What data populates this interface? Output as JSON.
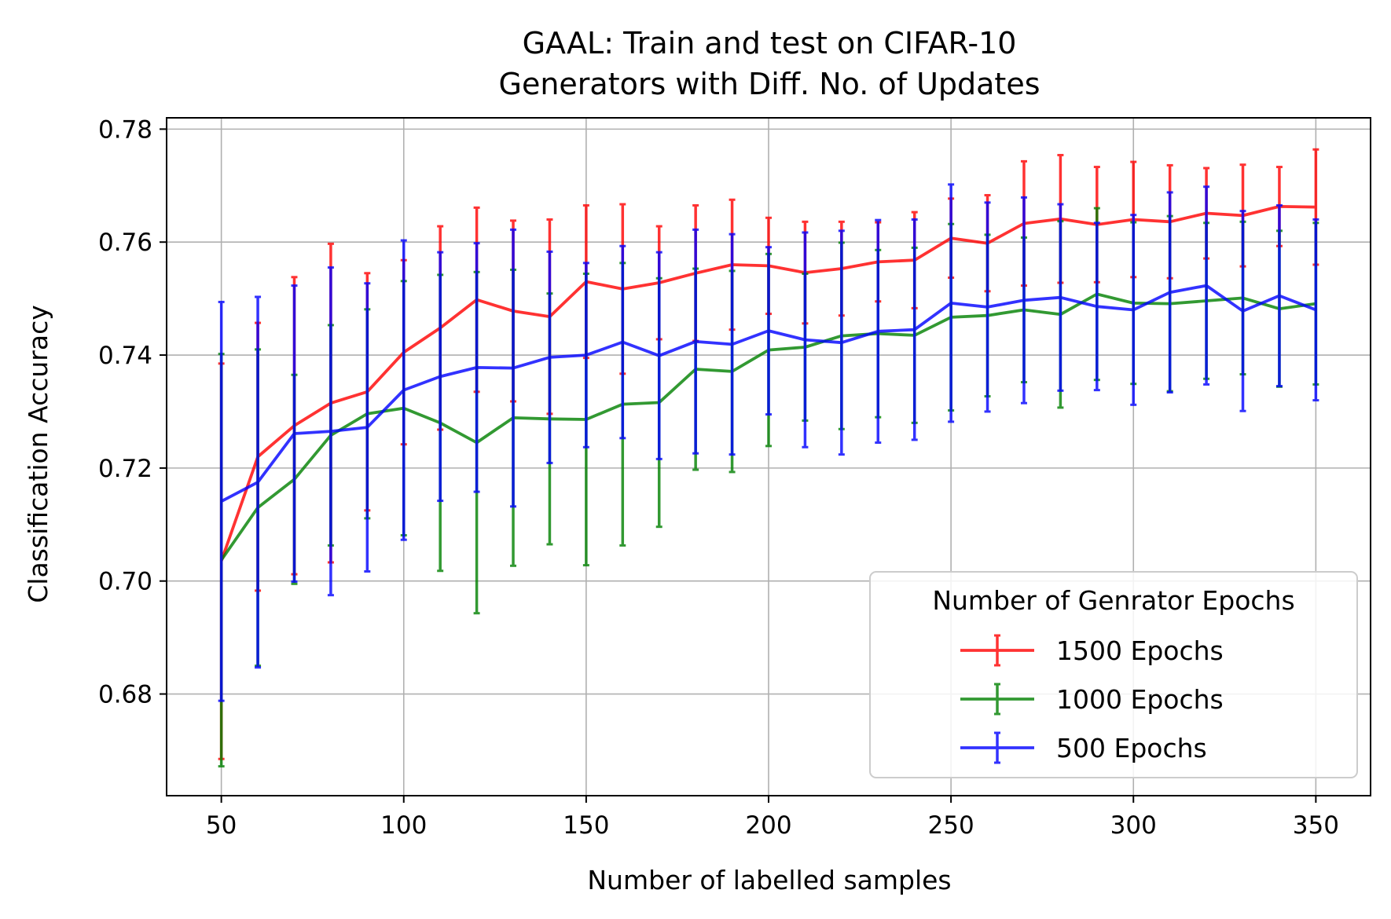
{
  "chart_data": {
    "type": "line",
    "title": "GAAL: Train and test on CIFAR-10",
    "subtitle": "Generators with Diff. No. of Updates",
    "xlabel": "Number of labelled samples",
    "ylabel": "Classification Accuracy",
    "xlim": [
      35,
      365
    ],
    "ylim": [
      0.662,
      0.782
    ],
    "xticks": [
      50,
      100,
      150,
      200,
      250,
      300,
      350
    ],
    "yticks": [
      0.68,
      0.7,
      0.72,
      0.74,
      0.76,
      0.78
    ],
    "yticks_labels": [
      "0.68",
      "0.70",
      "0.72",
      "0.74",
      "0.76",
      "0.78"
    ],
    "grid": true,
    "legend": {
      "title": "Number of Genrator Epochs",
      "placement": "bottom-right"
    },
    "x": [
      50,
      60,
      70,
      80,
      90,
      100,
      110,
      120,
      130,
      140,
      150,
      160,
      170,
      180,
      190,
      200,
      210,
      220,
      230,
      240,
      250,
      260,
      270,
      280,
      290,
      300,
      310,
      320,
      330,
      340,
      350
    ],
    "series": [
      {
        "name": "1500 Epochs",
        "color": "#ff0000",
        "values": [
          0.7035,
          0.722,
          0.7275,
          0.7315,
          0.7335,
          0.7405,
          0.7448,
          0.7498,
          0.7478,
          0.7468,
          0.753,
          0.7517,
          0.7528,
          0.7545,
          0.756,
          0.7558,
          0.7546,
          0.7553,
          0.7565,
          0.7568,
          0.7607,
          0.7598,
          0.7633,
          0.7641,
          0.7631,
          0.764,
          0.7636,
          0.7651,
          0.7647,
          0.7663,
          0.7662
        ],
        "errors": [
          0.035,
          0.0237,
          0.0263,
          0.0282,
          0.021,
          0.0163,
          0.018,
          0.0163,
          0.016,
          0.0172,
          0.0135,
          0.015,
          0.01,
          0.012,
          0.0115,
          0.0085,
          0.009,
          0.0083,
          0.007,
          0.0085,
          0.007,
          0.0085,
          0.011,
          0.0113,
          0.0102,
          0.0102,
          0.01,
          0.008,
          0.009,
          0.007,
          0.0102
        ]
      },
      {
        "name": "1000 Epochs",
        "color": "#008000",
        "values": [
          0.7037,
          0.713,
          0.718,
          0.7258,
          0.7296,
          0.7306,
          0.728,
          0.7245,
          0.7289,
          0.7287,
          0.7286,
          0.7313,
          0.7316,
          0.7375,
          0.7371,
          0.7409,
          0.7414,
          0.7434,
          0.7438,
          0.7435,
          0.7467,
          0.747,
          0.748,
          0.7472,
          0.7508,
          0.7492,
          0.7491,
          0.7496,
          0.7501,
          0.7482,
          0.7491
        ],
        "errors": [
          0.0365,
          0.028,
          0.0185,
          0.0195,
          0.0185,
          0.0225,
          0.0262,
          0.0302,
          0.0262,
          0.0222,
          0.0258,
          0.025,
          0.022,
          0.0178,
          0.0178,
          0.017,
          0.013,
          0.0165,
          0.0148,
          0.0155,
          0.0165,
          0.0143,
          0.0128,
          0.0165,
          0.0152,
          0.0143,
          0.0155,
          0.0138,
          0.0135,
          0.0138,
          0.0143
        ]
      },
      {
        "name": "500 Epochs",
        "color": "#0000ff",
        "values": [
          0.7141,
          0.7175,
          0.7261,
          0.7265,
          0.7272,
          0.7338,
          0.7362,
          0.7378,
          0.7377,
          0.7396,
          0.74,
          0.7423,
          0.7399,
          0.7424,
          0.7419,
          0.7443,
          0.7427,
          0.7422,
          0.7442,
          0.7445,
          0.7492,
          0.7485,
          0.7497,
          0.7502,
          0.7486,
          0.748,
          0.7511,
          0.7523,
          0.7478,
          0.7505,
          0.748
        ],
        "errors": [
          0.0353,
          0.0328,
          0.0262,
          0.029,
          0.0255,
          0.0265,
          0.022,
          0.022,
          0.0245,
          0.0187,
          0.0163,
          0.017,
          0.0183,
          0.0198,
          0.0195,
          0.0148,
          0.019,
          0.0198,
          0.0197,
          0.0195,
          0.021,
          0.0185,
          0.0182,
          0.0165,
          0.0148,
          0.0168,
          0.0177,
          0.0175,
          0.0177,
          0.016,
          0.016
        ]
      }
    ]
  }
}
